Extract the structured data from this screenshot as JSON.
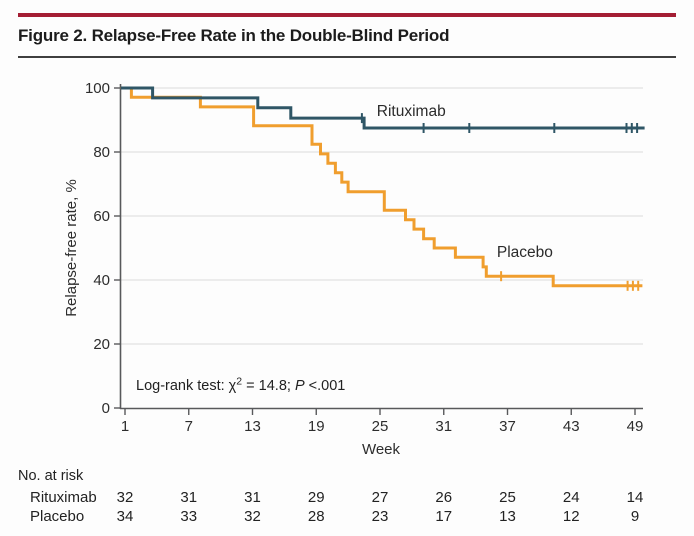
{
  "figure": {
    "title": "Figure 2. Relapse-Free Rate in the Double-Blind Period"
  },
  "colors": {
    "accent_rule": "#a41e34",
    "title_text": "#1c1c1c",
    "axis": "#58595b",
    "grid": "#e2e2e2",
    "tick_text": "#2d2d2d",
    "rituximab": "#2f5666",
    "placebo": "#f09e2e",
    "annotation_text": "#222222"
  },
  "chart_data": {
    "type": "line",
    "subtype": "kaplan-meier-step",
    "title": "",
    "xlabel": "Week",
    "ylabel": "Relapse-free rate, %",
    "xlim": [
      1,
      49
    ],
    "ylim": [
      0,
      100
    ],
    "xticks": [
      1,
      7,
      13,
      19,
      25,
      31,
      37,
      43,
      49
    ],
    "yticks": [
      0,
      20,
      40,
      60,
      80,
      100
    ],
    "grid": "horizontal",
    "legend_position": "inline-labels",
    "annotation": {
      "prefix": "Log-rank test: χ",
      "superscript": "2",
      "mid": " = 14.8; ",
      "p_label": "P",
      "suffix": " <.001"
    },
    "series": [
      {
        "name": "Placebo",
        "color": "#f09e2e",
        "steps": [
          [
            0.6,
            100
          ],
          [
            1.6,
            97.1
          ],
          [
            8.1,
            94.1
          ],
          [
            13.1,
            88.2
          ],
          [
            18.6,
            82.4
          ],
          [
            19.4,
            79.4
          ],
          [
            20.1,
            76.5
          ],
          [
            20.8,
            73.5
          ],
          [
            21.4,
            70.6
          ],
          [
            22.0,
            67.6
          ],
          [
            25.4,
            61.8
          ],
          [
            27.4,
            58.8
          ],
          [
            28.2,
            55.9
          ],
          [
            29.1,
            52.9
          ],
          [
            30.1,
            50.0
          ],
          [
            32.1,
            47.1
          ],
          [
            34.7,
            44.1
          ],
          [
            35.0,
            41.2
          ],
          [
            41.3,
            38.2
          ],
          [
            49.7,
            38.2
          ]
        ],
        "censor_marks": [
          [
            36.4,
            41.2
          ],
          [
            48.3,
            38.2
          ],
          [
            48.8,
            38.2
          ],
          [
            49.3,
            38.2
          ]
        ],
        "label_pos": [
          36.0,
          47.2
        ]
      },
      {
        "name": "Rituximab",
        "color": "#2f5666",
        "steps": [
          [
            0.6,
            100
          ],
          [
            3.6,
            96.9
          ],
          [
            13.5,
            93.8
          ],
          [
            16.6,
            90.6
          ],
          [
            23.5,
            87.5
          ],
          [
            49.9,
            87.5
          ]
        ],
        "censor_marks": [
          [
            23.3,
            90.6
          ],
          [
            29.1,
            87.5
          ],
          [
            33.4,
            87.5
          ],
          [
            41.4,
            87.5
          ],
          [
            48.2,
            87.5
          ],
          [
            48.7,
            87.5
          ],
          [
            49.2,
            87.5
          ]
        ],
        "label_pos": [
          24.7,
          91.3
        ]
      }
    ]
  },
  "risk_table": {
    "title": "No. at risk",
    "weeks": [
      1,
      7,
      13,
      19,
      25,
      31,
      37,
      43,
      49
    ],
    "rows": [
      {
        "label": "Rituximab",
        "values": [
          32,
          31,
          31,
          29,
          27,
          26,
          25,
          24,
          14
        ]
      },
      {
        "label": "Placebo",
        "values": [
          34,
          33,
          32,
          28,
          23,
          17,
          13,
          12,
          9
        ]
      }
    ]
  }
}
